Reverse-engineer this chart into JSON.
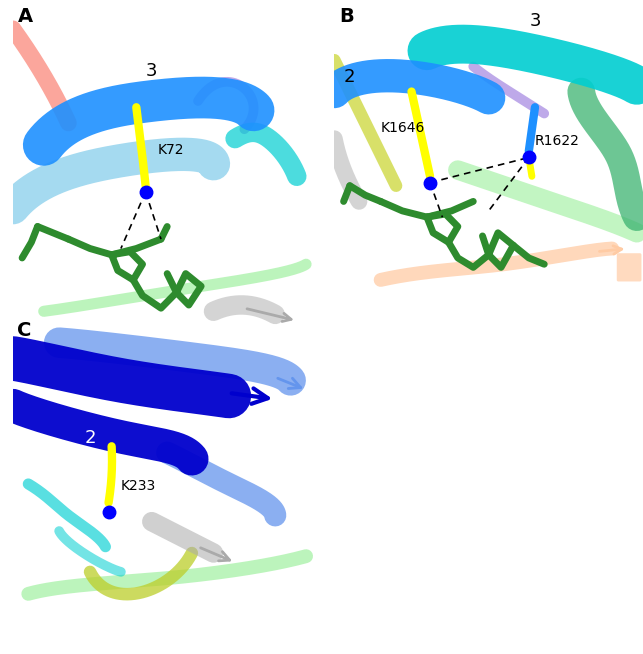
{
  "figure_width": 6.43,
  "figure_height": 6.54,
  "background_color": "#ffffff",
  "panel_labels": [
    "A",
    "B",
    "C"
  ],
  "panel_label_fontsize": 14,
  "panel_label_fontweight": "bold",
  "panels": {
    "A": {
      "annotation": "K72",
      "beta_strand_label": "3",
      "colors": {
        "beta_strand_main": "#1E90FF",
        "beta_strand_secondary": "#87CEEB",
        "helix": "#00CED1",
        "atp": "#2E8B2E",
        "lysine": "#FFFF00",
        "lysine_nitrogen": "#0000FF",
        "salmon_helix": "#FA8072",
        "purple_loop": "#9370DB",
        "light_green": "#90EE90"
      }
    },
    "B": {
      "annotation": "K1646",
      "annotation2": "R1622",
      "beta_strand_label_2": "2",
      "beta_strand_label_3": "3",
      "colors": {
        "beta_strand_main": "#00CED1",
        "beta_strand_secondary": "#1E90FF",
        "helix": "#3CB371",
        "atp": "#2E8B2E",
        "lysine": "#FFFF00",
        "lysine_nitrogen": "#0000FF",
        "light_green": "#90EE90",
        "peach": "#FFCBA4",
        "yellow_green": "#9ACD32"
      }
    },
    "C": {
      "annotation": "K233",
      "beta_strand_label": "2",
      "colors": {
        "beta_strand_main": "#0000CD",
        "beta_strand_secondary": "#6495ED",
        "helix": "#00CED1",
        "lysine": "#FFFF00",
        "lysine_nitrogen": "#0000FF",
        "light_green": "#90EE90",
        "yellow_green": "#9ACD32"
      }
    }
  }
}
